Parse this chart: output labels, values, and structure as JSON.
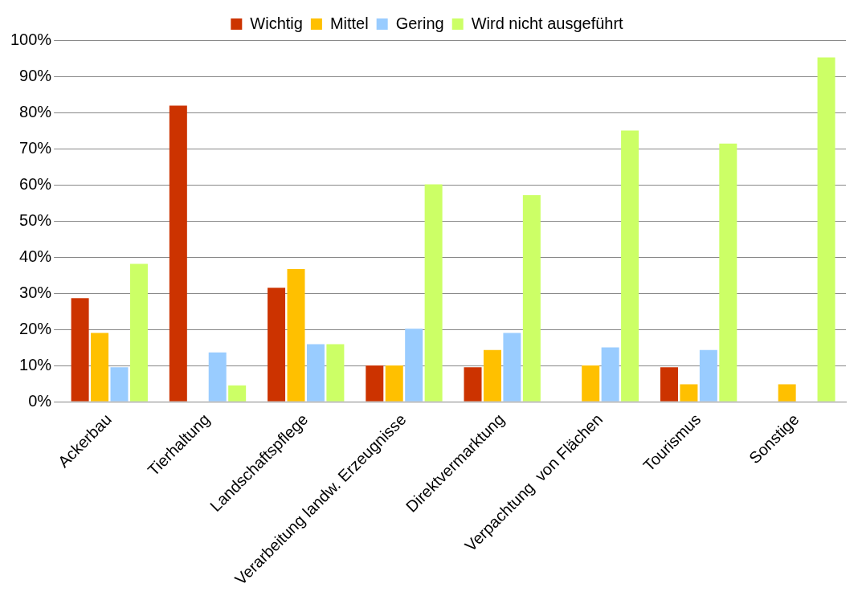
{
  "chart_data": {
    "type": "bar",
    "categories": [
      "Ackerbau",
      "Tierhaltung",
      "Landschaftspflege",
      "Verarbeitung landw. Erzeugnisse",
      "Direktvermarktung",
      "Verpachtung  von Flächen",
      "Tourismus",
      "Sonstige"
    ],
    "series": [
      {
        "name": "Wichtig",
        "color": "#cc3300",
        "values": [
          28.6,
          81.9,
          31.5,
          10,
          9.5,
          0,
          9.5,
          0
        ]
      },
      {
        "name": "Mittel",
        "color": "#ffc000",
        "values": [
          19,
          0,
          36.7,
          10,
          14.3,
          10,
          4.8,
          4.8
        ]
      },
      {
        "name": "Gering",
        "color": "#99ccff",
        "values": [
          9.5,
          13.6,
          15.9,
          20.2,
          19,
          15,
          14.3,
          0
        ]
      },
      {
        "name": "Wird nicht ausgeführt",
        "color": "#ccff66",
        "values": [
          38.1,
          4.5,
          15.9,
          60.1,
          57.1,
          75,
          71.4,
          95.2
        ]
      }
    ],
    "ylim": [
      0,
      100
    ],
    "yticks": [
      {
        "value": 0,
        "label": "0%"
      },
      {
        "value": 10,
        "label": "10%"
      },
      {
        "value": 20,
        "label": "20%"
      },
      {
        "value": 30,
        "label": "30%"
      },
      {
        "value": 40,
        "label": "40%"
      },
      {
        "value": 50,
        "label": "50%"
      },
      {
        "value": 60,
        "label": "60%"
      },
      {
        "value": 70,
        "label": "70%"
      },
      {
        "value": 80,
        "label": "80%"
      },
      {
        "value": 90,
        "label": "90%"
      },
      {
        "value": 100,
        "label": "100%"
      }
    ],
    "grid": "y",
    "legend": "top"
  }
}
